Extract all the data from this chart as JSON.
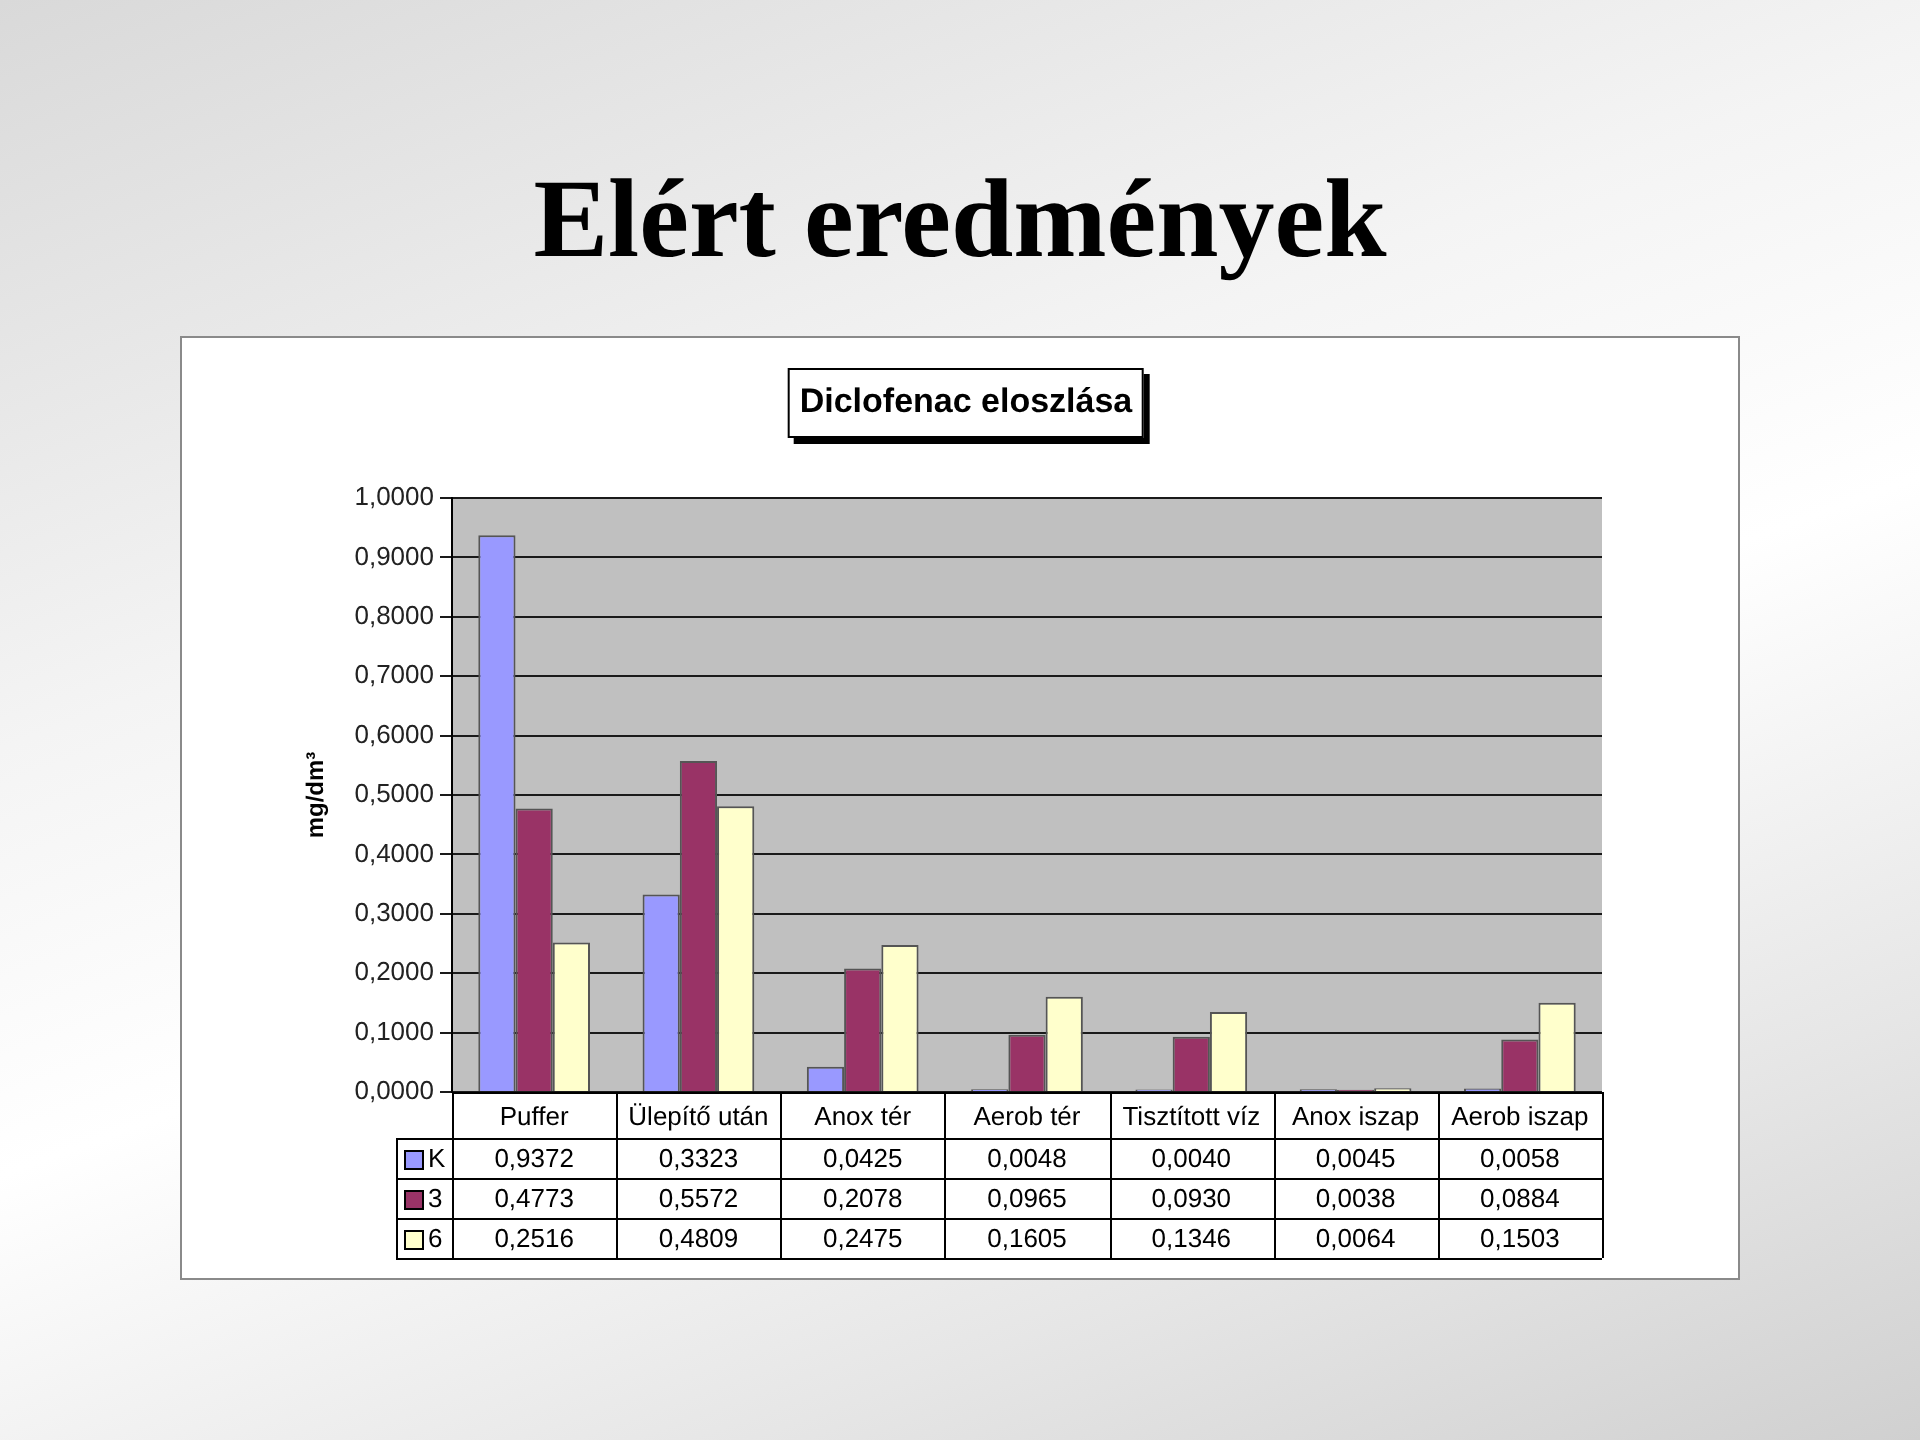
{
  "chart_data": {
    "type": "bar",
    "title": "Elért eredmények",
    "subtitle": "Diclofenac eloszlása",
    "ylabel": "mg/dm³",
    "categories": [
      "Puffer",
      "Ülepítő után",
      "Anox tér",
      "Aerob tér",
      "Tisztított víz",
      "Anox iszap",
      "Aerob iszap"
    ],
    "series": [
      {
        "name": "K",
        "color": "#9999ff",
        "values": [
          0.9372,
          0.3323,
          0.0425,
          0.0048,
          0.004,
          0.0045,
          0.0058
        ],
        "value_labels": [
          "0,9372",
          "0,3323",
          "0,0425",
          "0,0048",
          "0,0040",
          "0,0045",
          "0,0058"
        ]
      },
      {
        "name": "3",
        "color": "#993366",
        "values": [
          0.4773,
          0.5572,
          0.2078,
          0.0965,
          0.093,
          0.0038,
          0.0884
        ],
        "value_labels": [
          "0,4773",
          "0,5572",
          "0,2078",
          "0,0965",
          "0,0930",
          "0,0038",
          "0,0884"
        ]
      },
      {
        "name": "6",
        "color": "#ffffcc",
        "values": [
          0.2516,
          0.4809,
          0.2475,
          0.1605,
          0.1346,
          0.0064,
          0.1503
        ],
        "value_labels": [
          "0,2516",
          "0,4809",
          "0,2475",
          "0,1605",
          "0,1346",
          "0,0064",
          "0,1503"
        ]
      }
    ],
    "ylim": [
      0,
      1
    ],
    "yticks": [
      {
        "value": 0,
        "label": "0,0000"
      },
      {
        "value": 0.1,
        "label": "0,1000"
      },
      {
        "value": 0.2,
        "label": "0,2000"
      },
      {
        "value": 0.3,
        "label": "0,3000"
      },
      {
        "value": 0.4,
        "label": "0,4000"
      },
      {
        "value": 0.5,
        "label": "0,5000"
      },
      {
        "value": 0.6,
        "label": "0,6000"
      },
      {
        "value": 0.7,
        "label": "0,7000"
      },
      {
        "value": 0.8,
        "label": "0,8000"
      },
      {
        "value": 0.9,
        "label": "0,9000"
      },
      {
        "value": 1,
        "label": "1,0000"
      }
    ],
    "grid": "y",
    "legend": "bottom"
  }
}
